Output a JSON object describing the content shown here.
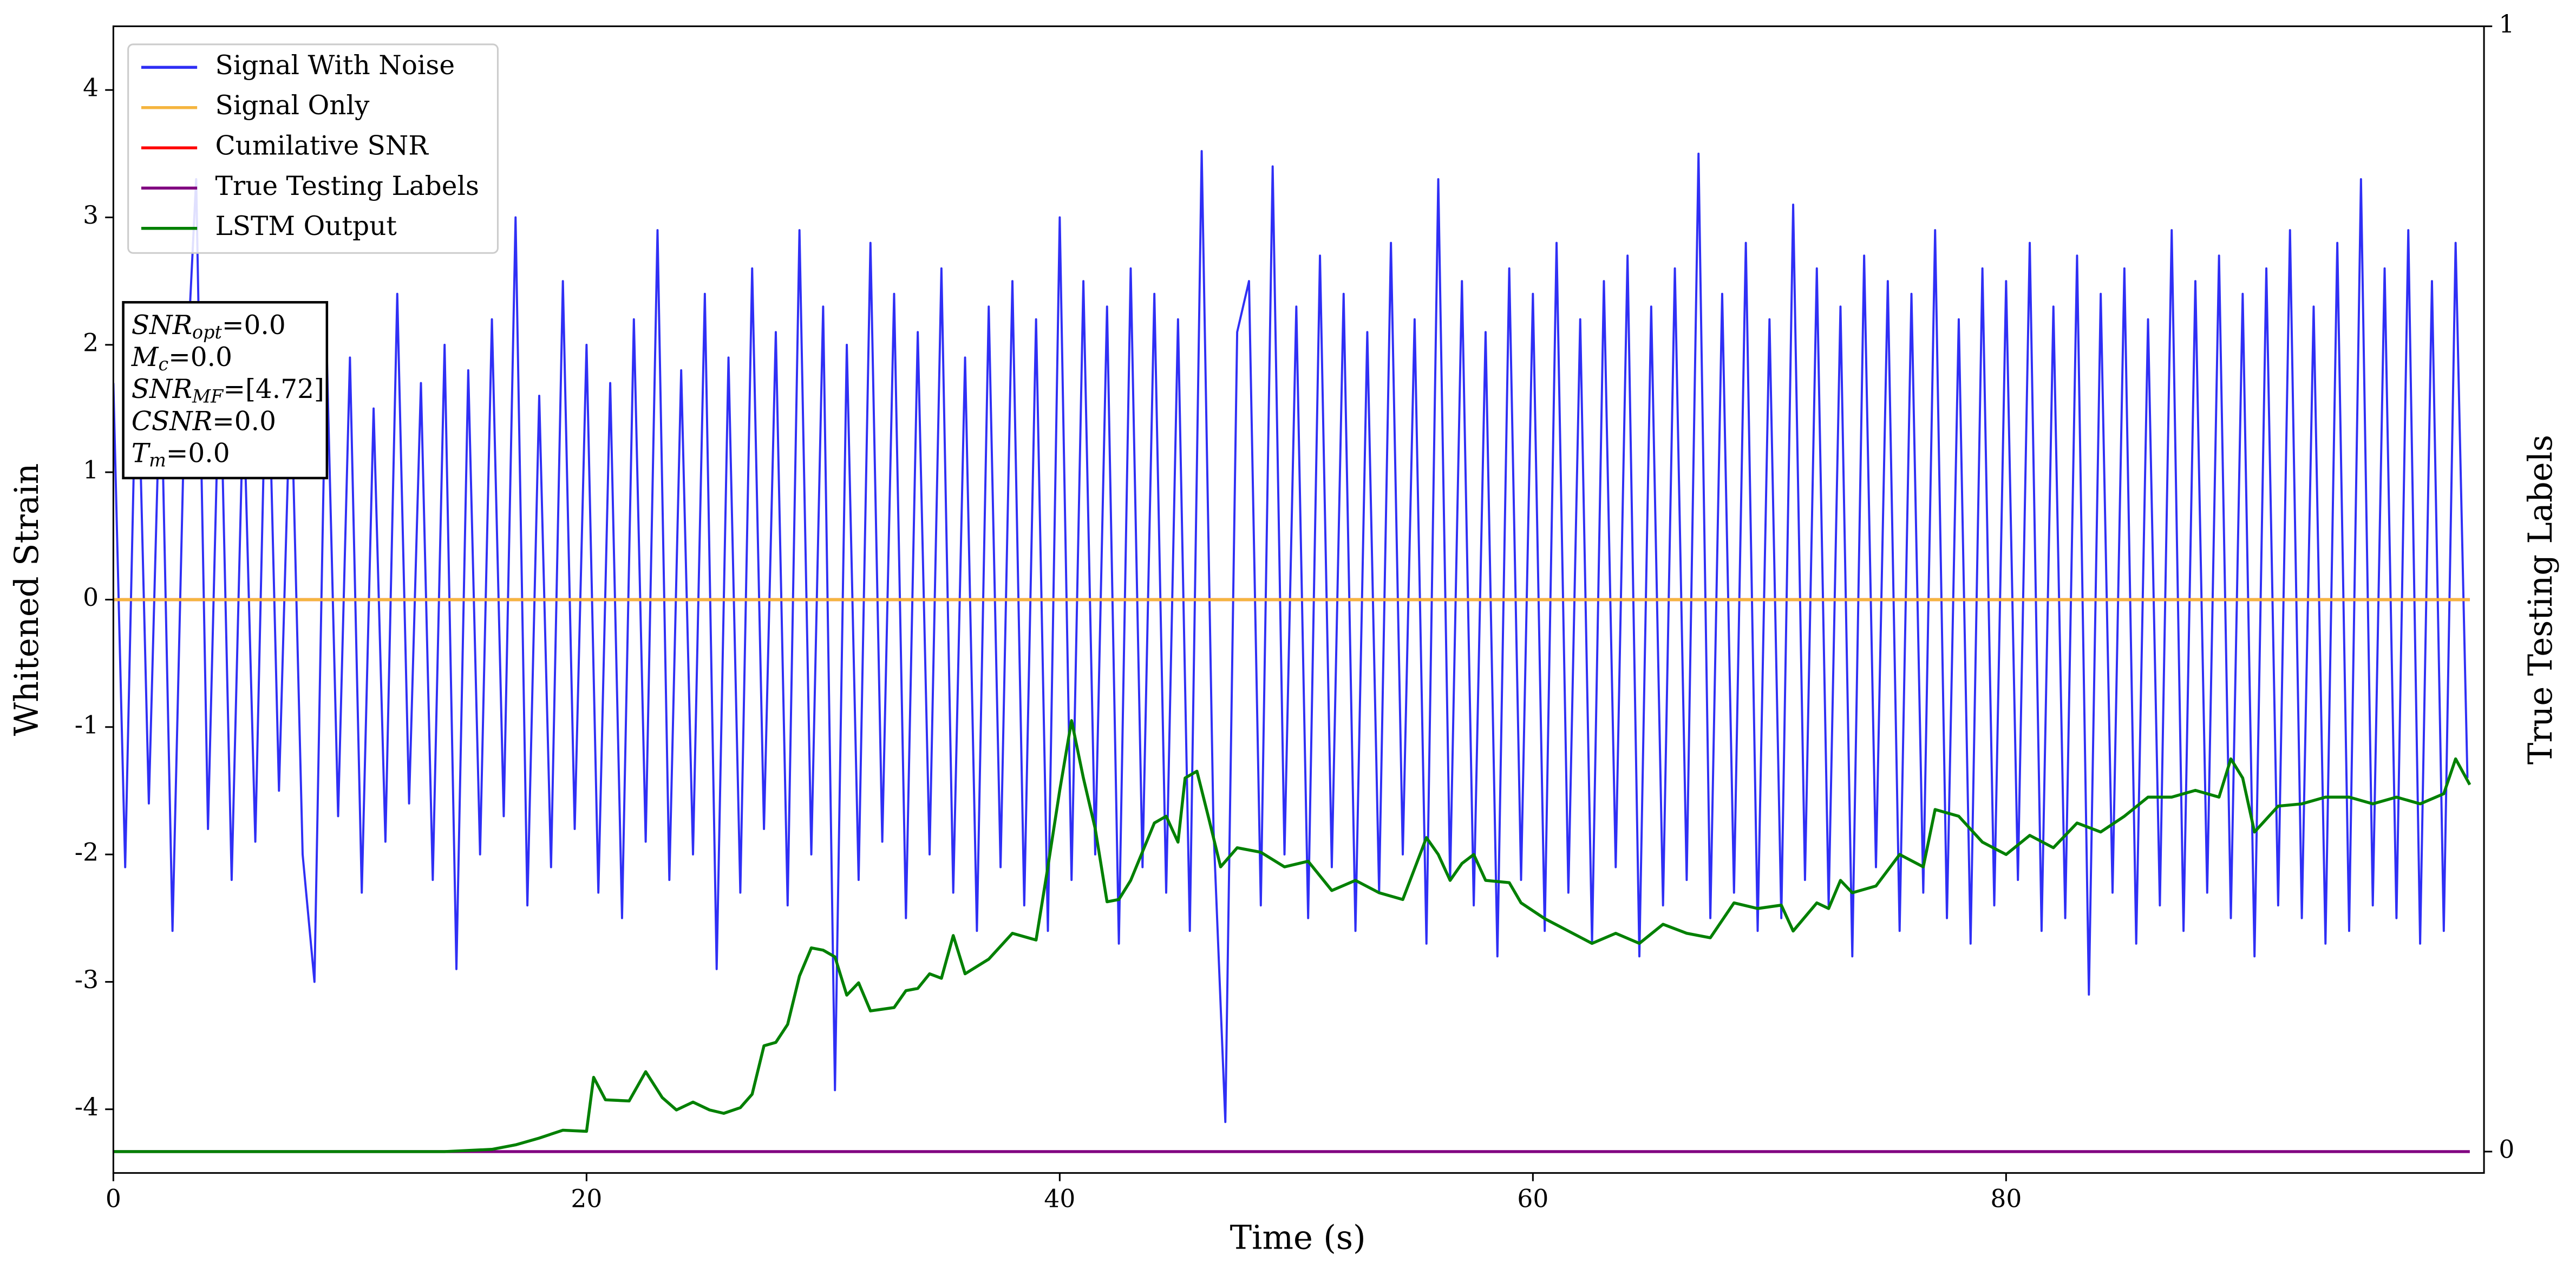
{
  "chart_data": {
    "type": "line",
    "xlabel": "Time (s)",
    "ylabel": "Whitened Strain",
    "y2label": "True Testing Labels",
    "xlim": [
      0,
      100.2
    ],
    "xticks": [
      0,
      20,
      40,
      60,
      80
    ],
    "ylim": [
      -4.5,
      4.5
    ],
    "yticks": [
      -4,
      -3,
      -2,
      -1,
      0,
      1,
      2,
      3,
      4
    ],
    "y2lim": [
      -0.019,
      1.0
    ],
    "y2ticks": [
      0,
      1
    ],
    "legend": "upper left",
    "annotations": [
      {
        "text": "SNR",
        "sub": "opt",
        "value": "=0.0"
      },
      {
        "text": "M",
        "sub": "c",
        "value": "=0.0"
      },
      {
        "text": "SNR",
        "sub": "MF",
        "value": "=[4.72]"
      },
      {
        "text": "CSNR",
        "value": "=0.0"
      },
      {
        "text": "T",
        "sub": "m",
        "value": "=0.0"
      }
    ],
    "series": [
      {
        "name": "Signal With Noise",
        "color": "#2f2ff5",
        "x": [
          0,
          0.5,
          1,
          1.5,
          2,
          2.5,
          3,
          3.5,
          4,
          4.5,
          5,
          5.5,
          6,
          6.5,
          7,
          7.5,
          8,
          8.5,
          9,
          9.5,
          10,
          10.5,
          11,
          11.5,
          12,
          12.5,
          13,
          13.5,
          14,
          14.5,
          15,
          15.5,
          16,
          16.5,
          17,
          17.5,
          18,
          18.5,
          19,
          19.5,
          20,
          20.5,
          21,
          21.5,
          22,
          22.5,
          23,
          23.5,
          24,
          24.5,
          25,
          25.5,
          26,
          26.5,
          27,
          27.5,
          28,
          28.5,
          29,
          29.5,
          30,
          30.5,
          31,
          31.5,
          32,
          32.5,
          33,
          33.5,
          34,
          34.5,
          35,
          35.5,
          36,
          36.5,
          37,
          37.5,
          38,
          38.5,
          39,
          39.5,
          40,
          40.5,
          41,
          41.5,
          42,
          42.5,
          43,
          43.5,
          44,
          44.5,
          45,
          45.5,
          46,
          46.5,
          47,
          47.5,
          48,
          48.5,
          49,
          49.5,
          50,
          50.5,
          51,
          51.5,
          52,
          52.5,
          53,
          53.5,
          54,
          54.5,
          55,
          55.5,
          56,
          56.5,
          57,
          57.5,
          58,
          58.5,
          59,
          59.5,
          60,
          60.5,
          61,
          61.5,
          62,
          62.5,
          63,
          63.5,
          64,
          64.5,
          65,
          65.5,
          66,
          66.5,
          67,
          67.5,
          68,
          68.5,
          69,
          69.5,
          70,
          70.5,
          71,
          71.5,
          72,
          72.5,
          73,
          73.5,
          74,
          74.5,
          75,
          75.5,
          76,
          76.5,
          77,
          77.5,
          78,
          78.5,
          79,
          79.5,
          80,
          80.5,
          81,
          81.5,
          82,
          82.5,
          83,
          83.5,
          84,
          84.5,
          85,
          85.5,
          86,
          86.5,
          87,
          87.5,
          88,
          88.5,
          89,
          89.5,
          90,
          90.5,
          91,
          91.5,
          92,
          92.5,
          93,
          93.5,
          94,
          94.5,
          95,
          95.5,
          96,
          96.5,
          97,
          97.5,
          98,
          98.5,
          99,
          99.5
        ],
        "values": [
          1.7,
          -2.1,
          2.2,
          -1.6,
          1.9,
          -2.6,
          1.4,
          3.3,
          -1.8,
          2.0,
          -2.2,
          1.6,
          -1.9,
          2.3,
          -1.5,
          1.8,
          -2.0,
          -3.0,
          2.1,
          -1.7,
          1.9,
          -2.3,
          1.5,
          -1.9,
          2.4,
          -1.6,
          1.7,
          -2.2,
          2.0,
          -2.9,
          1.8,
          -2.0,
          2.2,
          -1.7,
          3.0,
          -2.4,
          1.6,
          -2.1,
          2.5,
          -1.8,
          2.0,
          -2.3,
          1.7,
          -2.5,
          2.2,
          -1.9,
          2.9,
          -2.2,
          1.8,
          -2.0,
          2.4,
          -2.9,
          1.9,
          -2.3,
          2.6,
          -1.8,
          2.1,
          -2.4,
          2.9,
          -2.0,
          2.3,
          -3.85,
          2.0,
          -2.2,
          2.8,
          -1.9,
          2.4,
          -2.5,
          2.1,
          -2.0,
          2.6,
          -2.3,
          1.9,
          -2.6,
          2.3,
          -2.1,
          2.5,
          -2.4,
          2.2,
          -2.6,
          3.0,
          -2.2,
          2.5,
          -2.0,
          2.3,
          -2.7,
          2.6,
          -2.1,
          2.4,
          -2.3,
          2.2,
          -2.6,
          3.52,
          -1.8,
          -4.1,
          2.1,
          2.5,
          -2.4,
          3.4,
          -2.0,
          2.3,
          -2.5,
          2.7,
          -2.1,
          2.4,
          -2.6,
          2.1,
          -2.3,
          2.8,
          -2.0,
          2.2,
          -2.7,
          3.3,
          -2.2,
          2.5,
          -2.4,
          2.1,
          -2.8,
          2.6,
          -2.2,
          2.4,
          -2.6,
          2.8,
          -2.3,
          2.2,
          -2.7,
          2.5,
          -2.1,
          2.7,
          -2.8,
          2.3,
          -2.4,
          2.6,
          -2.2,
          3.5,
          -2.5,
          2.4,
          -2.3,
          2.8,
          -2.6,
          2.2,
          -2.5,
          3.1,
          -2.2,
          2.6,
          -2.4,
          2.3,
          -2.8,
          2.7,
          -2.1,
          2.5,
          -2.6,
          2.4,
          -2.3,
          2.9,
          -2.5,
          2.2,
          -2.7,
          2.6,
          -2.4,
          2.5,
          -2.2,
          2.8,
          -2.6,
          2.3,
          -2.5,
          2.7,
          -3.1,
          2.4,
          -2.3,
          2.6,
          -2.7,
          2.2,
          -2.4,
          2.9,
          -2.6,
          2.5,
          -2.3,
          2.7,
          -2.5,
          2.4,
          -2.8,
          2.6,
          -2.4,
          2.9,
          -2.5,
          2.3,
          -2.7,
          2.8,
          -2.6,
          3.3,
          -2.4,
          2.6,
          -2.5,
          2.9,
          -2.7,
          2.5,
          -2.6,
          2.8,
          -1.4
        ]
      },
      {
        "name": "Signal Only",
        "color": "#f5b53f",
        "x": [
          0,
          99.6
        ],
        "values": [
          0,
          0
        ]
      },
      {
        "name": "Cumilative SNR",
        "color": "#ff0000",
        "x": [
          0,
          99.6
        ],
        "values": [
          0,
          0
        ]
      },
      {
        "name": "True Testing Labels",
        "color": "#800080",
        "axis": "y2",
        "x": [
          0,
          99.6
        ],
        "values": [
          0,
          0
        ]
      },
      {
        "name": "LSTM Output",
        "color": "#008000",
        "axis": "y2",
        "x": [
          0,
          14,
          16,
          17,
          18,
          19,
          20,
          20.3,
          20.8,
          21.8,
          22.5,
          23.2,
          23.8,
          24.5,
          25.2,
          25.8,
          26.5,
          27,
          27.5,
          28,
          28.5,
          29,
          29.5,
          30,
          30.5,
          31,
          31.5,
          32,
          33,
          33.5,
          34,
          34.5,
          35,
          35.5,
          36,
          37,
          38,
          39,
          39.5,
          40,
          40.5,
          41,
          41.5,
          42,
          42.5,
          43,
          44,
          44.5,
          45,
          45.3,
          45.8,
          46.3,
          46.8,
          47.5,
          48.5,
          49.5,
          50.5,
          51.5,
          52.5,
          53.5,
          54.5,
          55.5,
          56,
          56.5,
          57,
          57.5,
          58,
          59,
          59.5,
          60.5,
          61.5,
          62.5,
          63.5,
          64.5,
          65.5,
          66.5,
          67.5,
          68.5,
          69.5,
          70.5,
          71,
          72,
          72.5,
          73,
          73.5,
          74.5,
          75.5,
          76.5,
          77,
          78,
          79,
          80,
          81,
          82,
          83,
          84,
          85,
          86,
          87,
          88,
          89,
          89.5,
          90,
          90.5,
          91.5,
          92.5,
          93.5,
          94.5,
          95.5,
          96.5,
          97.5,
          98.5,
          99,
          99.6
        ],
        "values": [
          0,
          0,
          0.002,
          0.006,
          0.012,
          0.019,
          0.018,
          0.066,
          0.046,
          0.045,
          0.071,
          0.048,
          0.037,
          0.044,
          0.037,
          0.034,
          0.039,
          0.051,
          0.094,
          0.097,
          0.113,
          0.156,
          0.181,
          0.179,
          0.173,
          0.139,
          0.15,
          0.125,
          0.128,
          0.143,
          0.145,
          0.158,
          0.154,
          0.192,
          0.158,
          0.171,
          0.194,
          0.188,
          0.253,
          0.321,
          0.383,
          0.332,
          0.287,
          0.222,
          0.224,
          0.241,
          0.292,
          0.298,
          0.275,
          0.332,
          0.338,
          0.296,
          0.253,
          0.27,
          0.266,
          0.253,
          0.258,
          0.232,
          0.241,
          0.23,
          0.224,
          0.279,
          0.264,
          0.241,
          0.256,
          0.264,
          0.241,
          0.239,
          0.221,
          0.207,
          0.196,
          0.185,
          0.194,
          0.185,
          0.202,
          0.194,
          0.19,
          0.221,
          0.216,
          0.219,
          0.196,
          0.221,
          0.216,
          0.241,
          0.23,
          0.236,
          0.264,
          0.253,
          0.304,
          0.298,
          0.275,
          0.264,
          0.281,
          0.27,
          0.292,
          0.284,
          0.298,
          0.315,
          0.315,
          0.321,
          0.315,
          0.349,
          0.332,
          0.284,
          0.307,
          0.309,
          0.315,
          0.315,
          0.309,
          0.315,
          0.309,
          0.318,
          0.349,
          0.326
        ]
      }
    ]
  }
}
